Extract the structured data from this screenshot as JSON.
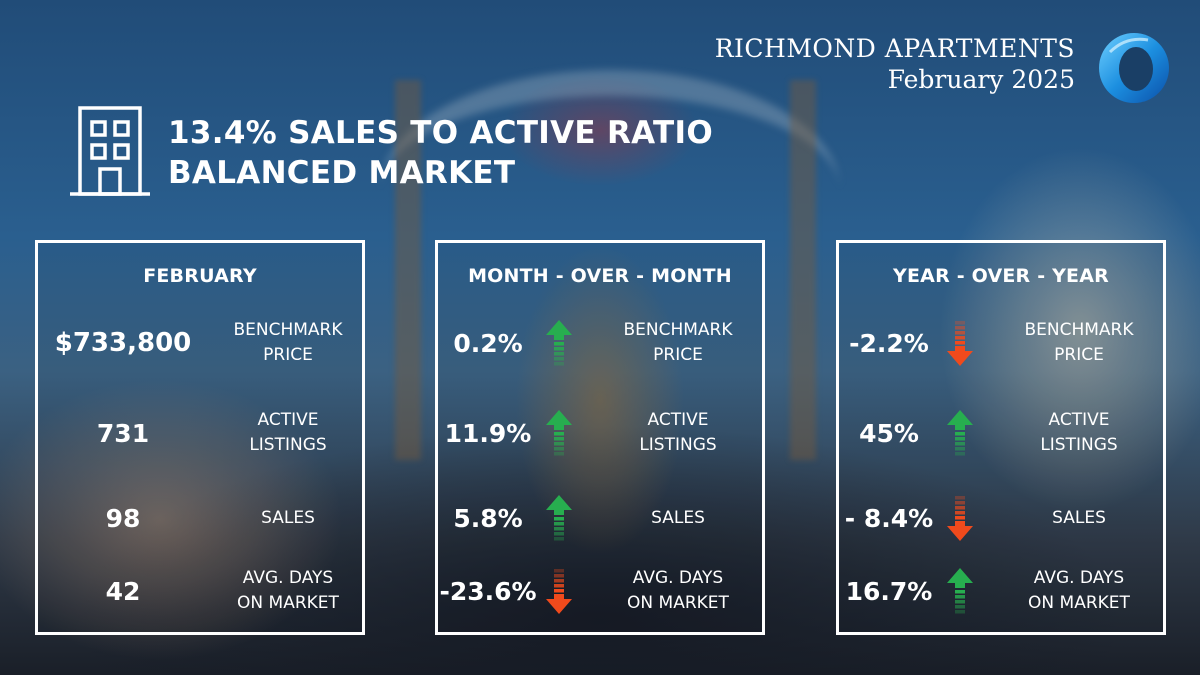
{
  "brand": {
    "title": "RICHMOND APARTMENTS",
    "date": "February 2025"
  },
  "headline": {
    "line1": "13.4% SALES TO ACTIVE RATIO",
    "line2": "BALANCED MARKET"
  },
  "colors": {
    "up": "#27ae4f",
    "down": "#f04a1c",
    "logo_blue": "#1c8fe0"
  },
  "icons": [
    "building-icon",
    "logo-ring-icon",
    "arrow-up-icon",
    "arrow-down-icon"
  ],
  "panels": [
    {
      "title": "FEBRUARY",
      "rows": [
        {
          "value": "$733,800",
          "label1": "BENCHMARK",
          "label2": "PRICE"
        },
        {
          "value": "731",
          "label1": "ACTIVE",
          "label2": "LISTINGS"
        },
        {
          "value": "98",
          "label1": "SALES",
          "label2": ""
        },
        {
          "value": "42",
          "label1": "AVG. DAYS",
          "label2": "ON MARKET"
        }
      ]
    },
    {
      "title": "MONTH - OVER - MONTH",
      "rows": [
        {
          "value": "0.2%",
          "direction": "up",
          "label1": "BENCHMARK",
          "label2": "PRICE"
        },
        {
          "value": "11.9%",
          "direction": "up",
          "label1": "ACTIVE",
          "label2": "LISTINGS"
        },
        {
          "value": "5.8%",
          "direction": "up",
          "label1": "SALES",
          "label2": ""
        },
        {
          "value": "-23.6%",
          "direction": "down",
          "label1": "AVG. DAYS",
          "label2": "ON MARKET"
        }
      ]
    },
    {
      "title": "YEAR - OVER - YEAR",
      "rows": [
        {
          "value": "-2.2%",
          "direction": "down",
          "label1": "BENCHMARK",
          "label2": "PRICE"
        },
        {
          "value": "45%",
          "direction": "up",
          "label1": "ACTIVE",
          "label2": "LISTINGS"
        },
        {
          "value": "- 8.4%",
          "direction": "down",
          "label1": "SALES",
          "label2": ""
        },
        {
          "value": "16.7%",
          "direction": "up",
          "label1": "AVG. DAYS",
          "label2": "ON MARKET"
        }
      ]
    }
  ]
}
